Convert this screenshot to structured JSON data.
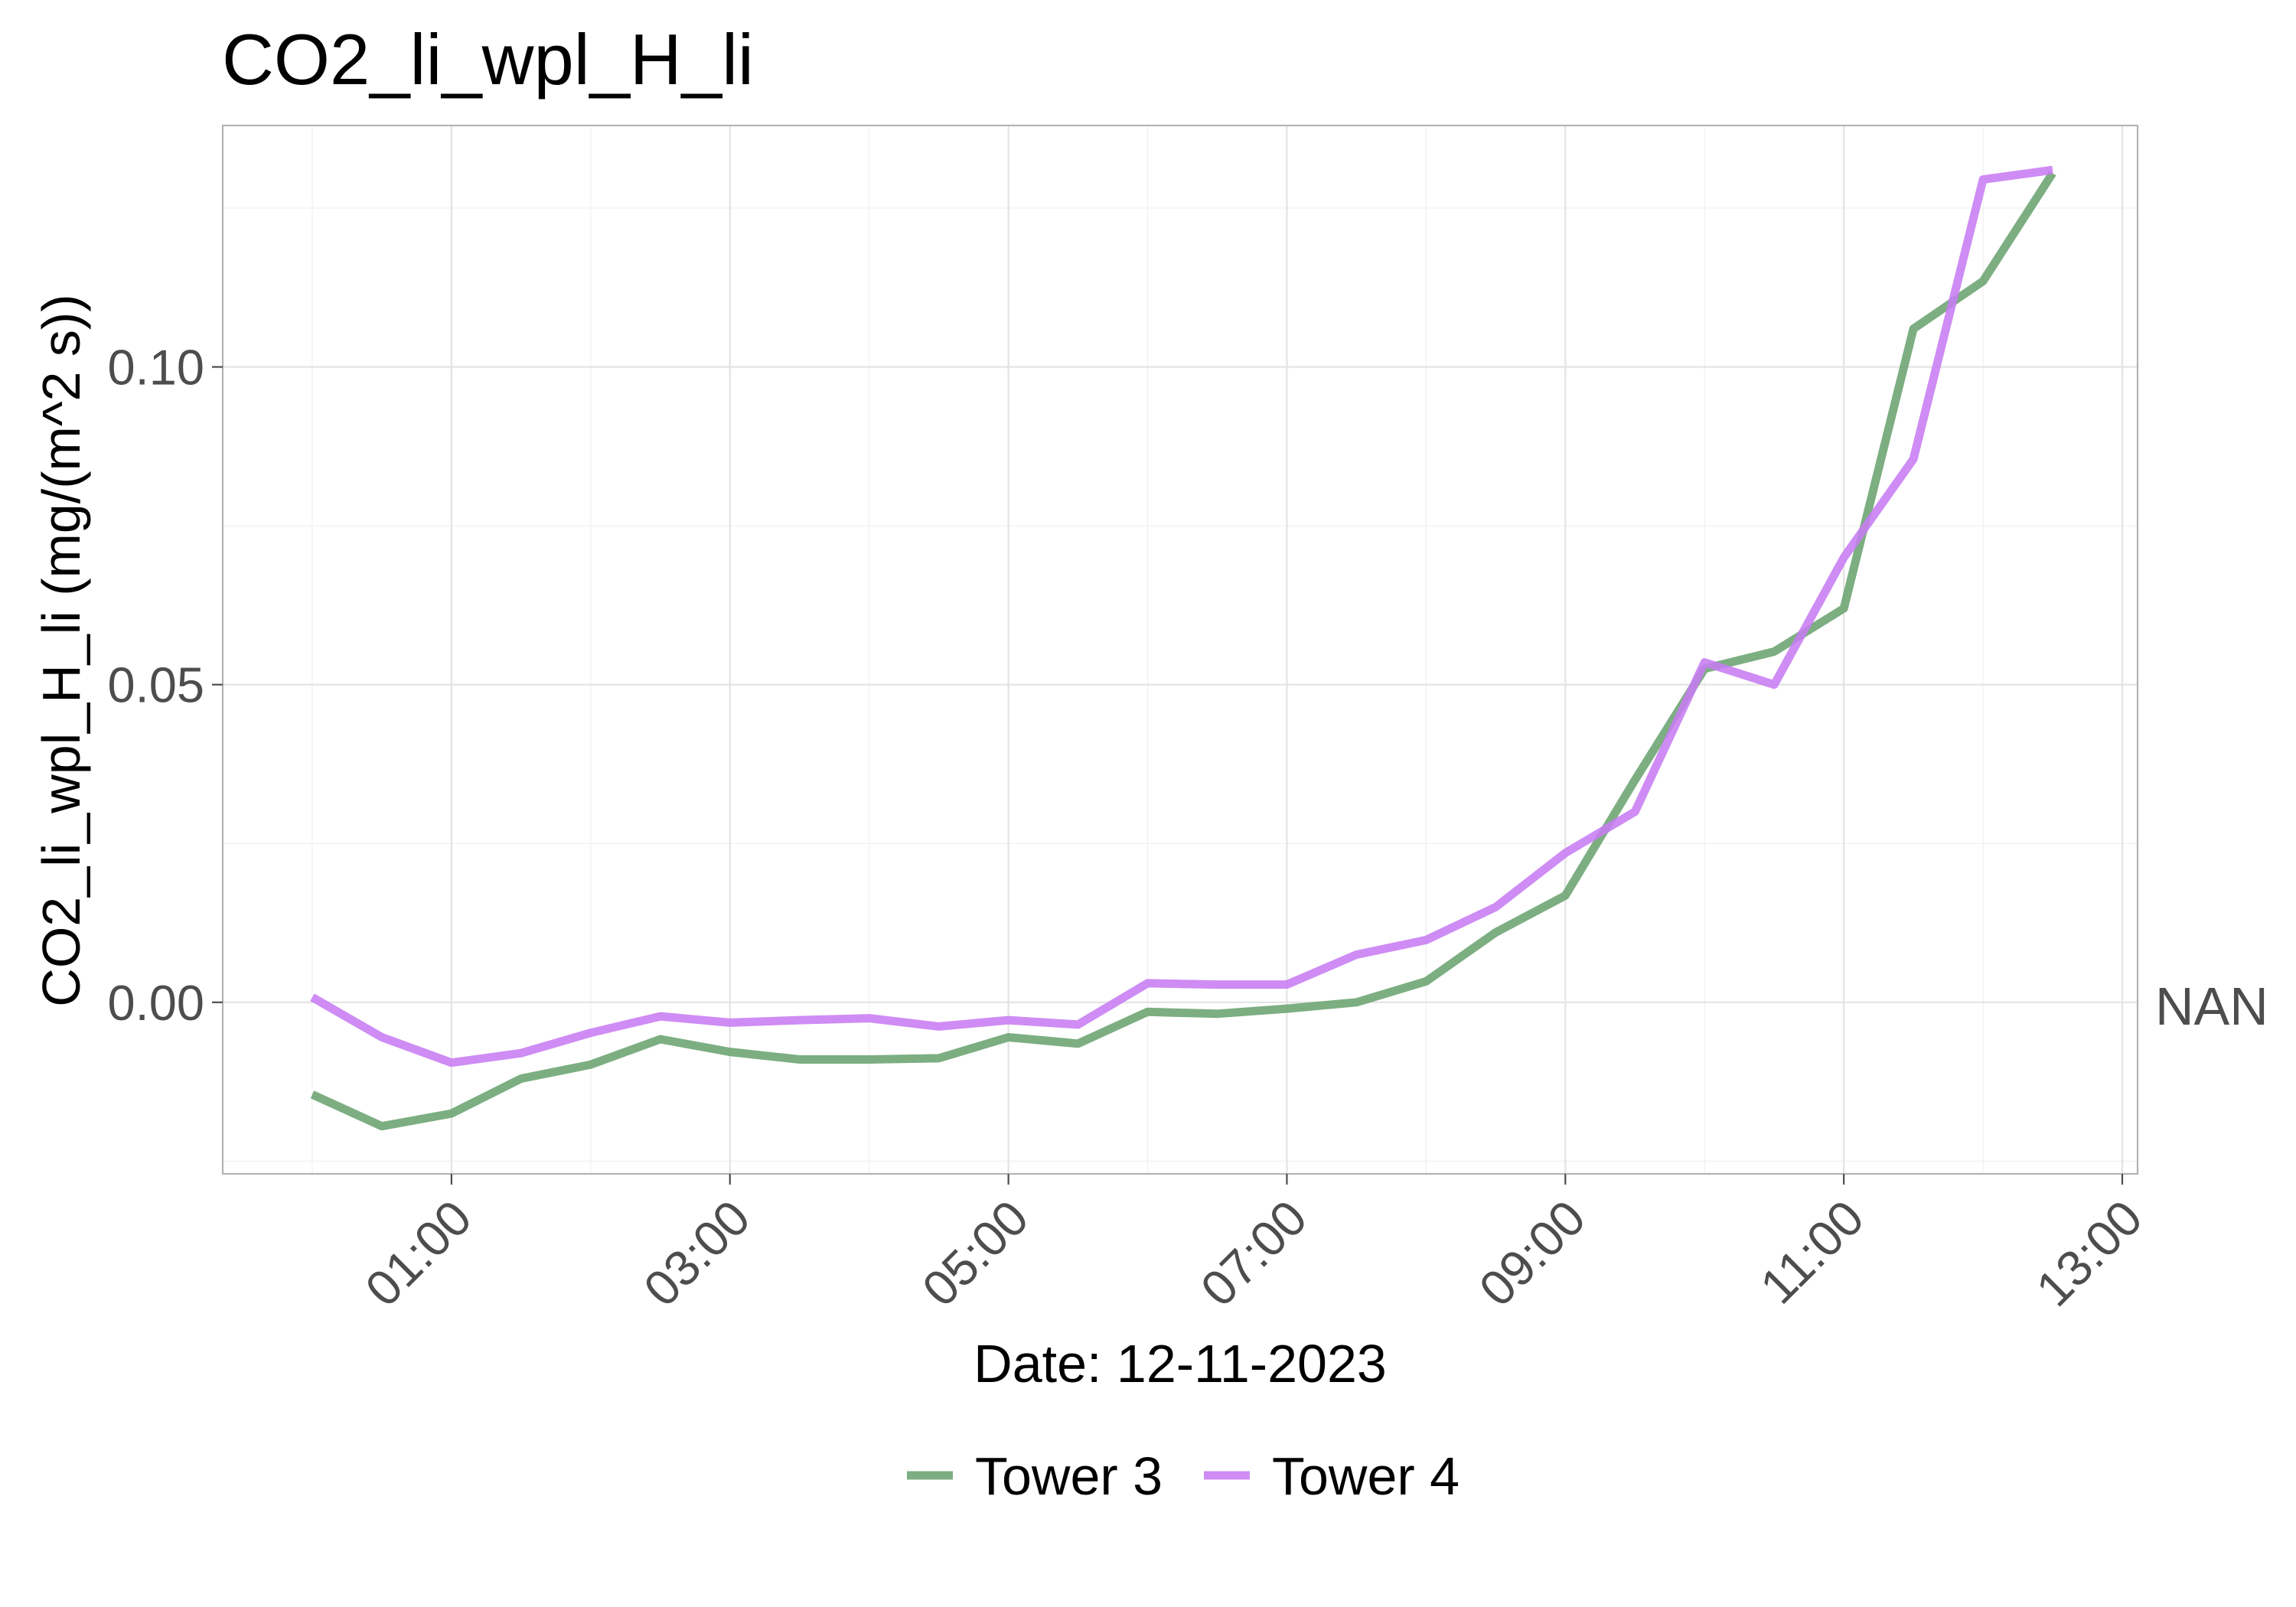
{
  "chart_data": {
    "type": "line",
    "title": "CO2_li_wpl_H_li",
    "xlabel": "Date: 12-11-2023",
    "ylabel": "CO2_li_wpl_H_li (mg/(m^2 s))",
    "secondary_axis_label": "NAN",
    "x_tick_labels": [
      "01:00",
      "03:00",
      "05:00",
      "07:00",
      "09:00",
      "11:00",
      "13:00"
    ],
    "y_tick_labels": [
      "0.00",
      "0.05",
      "0.10"
    ],
    "y_ticks": [
      0.0,
      0.05,
      0.1
    ],
    "xlim": [
      "00:00",
      "13:00"
    ],
    "ylim": [
      -0.027,
      0.138
    ],
    "grid": true,
    "legend_position": "bottom",
    "x": [
      "00:00",
      "00:30",
      "01:00",
      "01:30",
      "02:00",
      "02:30",
      "03:00",
      "03:30",
      "04:00",
      "04:30",
      "05:00",
      "05:30",
      "06:00",
      "06:30",
      "07:00",
      "07:30",
      "08:00",
      "08:30",
      "09:00",
      "09:30",
      "10:00",
      "10:30",
      "11:00",
      "11:30",
      "12:00",
      "12:30"
    ],
    "series": [
      {
        "name": "Tower 3",
        "color": "#6aa36f",
        "values": [
          -0.0145,
          -0.0195,
          -0.0175,
          -0.012,
          -0.0098,
          -0.0058,
          -0.0078,
          -0.009,
          -0.009,
          -0.0088,
          -0.0055,
          -0.0065,
          -0.0015,
          -0.0018,
          -0.001,
          0.0,
          0.0033,
          0.011,
          0.0168,
          0.035,
          0.0525,
          0.0552,
          0.062,
          0.106,
          0.1135,
          0.1305
        ]
      },
      {
        "name": "Tower 4",
        "color": "#c77cf2",
        "values": [
          0.0008,
          -0.0055,
          -0.0095,
          -0.008,
          -0.0048,
          -0.0022,
          -0.0032,
          -0.0028,
          -0.0025,
          -0.0038,
          -0.0028,
          -0.0035,
          0.003,
          0.0028,
          0.0028,
          0.0075,
          0.0098,
          0.015,
          0.0235,
          0.03,
          0.0535,
          0.05,
          0.07,
          0.0855,
          0.1295,
          0.131
        ]
      }
    ]
  }
}
